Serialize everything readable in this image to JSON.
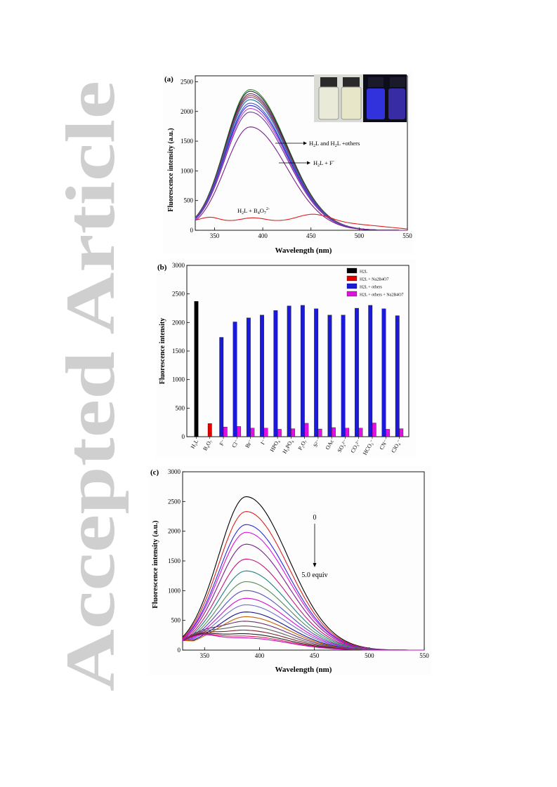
{
  "watermark": "Accepted Article",
  "panels": [
    {
      "label": "(a)",
      "ylabel": "Fluorescence intensity (a.u.)",
      "xlabel": "Wavelength (nm)",
      "xticks": [
        "350",
        "400",
        "450",
        "500",
        "550"
      ],
      "yticks": [
        "0",
        "500",
        "1000",
        "1500",
        "2000",
        "2500"
      ],
      "annotations": {
        "others_base": "H",
        "others_sub1": "2",
        "others_mid": "L and H",
        "others_sub2": "2",
        "others_end": "L +others",
        "f_base": "H",
        "f_sub": "2",
        "f_end": "L + F",
        "f_sup": "-",
        "borate_base": "H",
        "borate_sub1": "2",
        "borate_mid": "L + B",
        "borate_sub2": "4",
        "borate_o": "O",
        "borate_sub3": "7",
        "borate_sup": "2-"
      }
    },
    {
      "label": "(b)",
      "ylabel": "Fluorescence intensity",
      "yticks": [
        "0",
        "500",
        "1000",
        "1500",
        "2000",
        "2500",
        "3000"
      ],
      "legend": [
        {
          "text": "H2L",
          "color": "#000000"
        },
        {
          "text": "H2L + Na2B4O7",
          "color": "#e00000"
        },
        {
          "text": "H2L + others",
          "color": "#1a1ad8"
        },
        {
          "text": "H2L + others + Na2B4O7",
          "color": "#e010e0"
        }
      ]
    },
    {
      "label": "(c)",
      "ylabel": "Fluorescence intensity (a.u.)",
      "xlabel": "Wavelength (nm)",
      "xticks": [
        "350",
        "400",
        "450",
        "500",
        "550"
      ],
      "yticks": [
        "0",
        "500",
        "1000",
        "1500",
        "2000",
        "2500",
        "3000"
      ],
      "arrow_top": "0",
      "arrow_bottom": "5.0 equiv"
    }
  ],
  "chart_data": [
    {
      "type": "line",
      "title": "",
      "xlabel": "Wavelength (nm)",
      "ylabel": "Fluorescence intensity (a.u.)",
      "xlim": [
        330,
        550
      ],
      "ylim": [
        0,
        2600
      ],
      "peak_x": 387,
      "series": [
        {
          "color": "#2f8f2f",
          "peak": 2370
        },
        {
          "color": "#222222",
          "peak": 2340
        },
        {
          "color": "#5a2a7a",
          "peak": 2300
        },
        {
          "color": "#8b4b2b",
          "peak": 2270
        },
        {
          "color": "#7b3f9f",
          "peak": 2240
        },
        {
          "color": "#1a6f8f",
          "peak": 2200
        },
        {
          "color": "#4a4ad0",
          "peak": 2140
        },
        {
          "color": "#2a2ae0",
          "peak": 2100
        },
        {
          "color": "#c040c0",
          "peak": 2050
        },
        {
          "color": "#6a3aa0",
          "peak": 1990
        },
        {
          "color": "#7a1e8a",
          "peak": 1740
        },
        {
          "color": "#e02020",
          "peak": 270,
          "flat": true
        }
      ],
      "grid": false
    },
    {
      "type": "bar",
      "categories": [
        "H2L",
        "B4O7",
        "F",
        "Cl",
        "Br",
        "I",
        "HPO4",
        "H2PO4",
        "P2O7",
        "S",
        "OAc",
        "SO3",
        "CO3",
        "HCO3",
        "CN",
        "ClO4"
      ],
      "category_labels": [
        "H₂L",
        "B₄O₇",
        "F⁻",
        "Cl⁻",
        "Br⁻",
        "I⁻",
        "HPO₄",
        "H₂PO₄",
        "P₂O₇",
        "S²⁻",
        "OAc",
        "SO₃²⁻",
        "CO₃²⁻",
        "HCO₃⁻",
        "CN⁻",
        "ClO₄⁻"
      ],
      "series": [
        {
          "name": "H2L",
          "values": [
            2370,
            null,
            null,
            null,
            null,
            null,
            null,
            null,
            null,
            null,
            null,
            null,
            null,
            null,
            null,
            null
          ]
        },
        {
          "name": "H2L + Na2B4O7",
          "values": [
            null,
            230,
            null,
            null,
            null,
            null,
            null,
            null,
            null,
            null,
            null,
            null,
            null,
            null,
            null,
            null
          ]
        },
        {
          "name": "H2L + others",
          "values": [
            null,
            null,
            1740,
            2010,
            2080,
            2130,
            2210,
            2290,
            2300,
            2240,
            2130,
            2130,
            2250,
            2300,
            2240,
            2120
          ]
        },
        {
          "name": "H2L + others + Na2B4O7",
          "values": [
            null,
            null,
            170,
            180,
            150,
            150,
            130,
            140,
            235,
            135,
            160,
            150,
            150,
            240,
            130,
            140
          ]
        }
      ],
      "ylim": [
        0,
        3000
      ],
      "legend_position": "top-right"
    },
    {
      "type": "line",
      "title": "",
      "xlabel": "Wavelength (nm)",
      "ylabel": "Fluorescence intensity (a.u.)",
      "xlim": [
        330,
        550
      ],
      "ylim": [
        0,
        3000
      ],
      "peak_x": 388,
      "peaks": [
        2580,
        2330,
        2110,
        1980,
        1780,
        1530,
        1330,
        1150,
        1000,
        870,
        760,
        640,
        560,
        480,
        400,
        330,
        270,
        230,
        200
      ],
      "colors": [
        "#000000",
        "#e02020",
        "#2a2ae0",
        "#e010e0",
        "#7a1e8a",
        "#c01878",
        "#208080",
        "#5a8a5a",
        "#5050c0",
        "#d010d0",
        "#7070d0",
        "#101090",
        "#c06000",
        "#703070",
        "#606060",
        "#802030",
        "#202020",
        "#e02060",
        "#c010c0"
      ],
      "grid": false
    }
  ]
}
